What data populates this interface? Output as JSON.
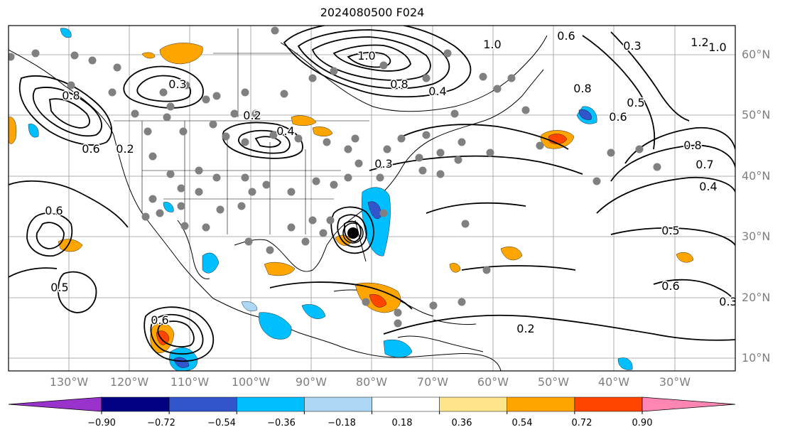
{
  "title": "2024080500 F024",
  "lat_labels": [
    "60°N",
    "50°N",
    "40°N",
    "30°N",
    "20°N",
    "10°N"
  ],
  "lon_labels": [
    "130°W",
    "120°W",
    "110°W",
    "100°W",
    "90°W",
    "80°W",
    "70°W",
    "60°W",
    "50°W",
    "40°W",
    "30°W"
  ],
  "colorbar": {
    "ticks": [
      "−0.90",
      "−0.72",
      "−0.54",
      "−0.36",
      "−0.18",
      "0.18",
      "0.36",
      "0.54",
      "0.72",
      "0.90"
    ],
    "colors": [
      "#9933cc",
      "#000080",
      "#3355cc",
      "#00bfff",
      "#add8f5",
      "#ffffff",
      "#ffe58a",
      "#ffa500",
      "#ff4500",
      "#b22222",
      "#ff85b3"
    ]
  },
  "contour_labels": [
    {
      "text": "1.0"
    },
    {
      "text": "0.6"
    },
    {
      "text": "1.0"
    },
    {
      "text": "0.8"
    },
    {
      "text": "0.4"
    },
    {
      "text": "0.3"
    },
    {
      "text": "0.2"
    },
    {
      "text": "0.4"
    },
    {
      "text": "0.3"
    },
    {
      "text": "0.6"
    },
    {
      "text": "0.8"
    },
    {
      "text": "0.7"
    },
    {
      "text": "0.4"
    },
    {
      "text": "0.5"
    },
    {
      "text": "0.6"
    },
    {
      "text": "0.6"
    },
    {
      "text": "0.3"
    },
    {
      "text": "0.2"
    },
    {
      "text": "0.6"
    },
    {
      "text": "0.2"
    },
    {
      "text": "0.8"
    },
    {
      "text": "1.2"
    },
    {
      "text": "1.0"
    },
    {
      "text": "0.6"
    },
    {
      "text": "0.5"
    },
    {
      "text": "0.8"
    },
    {
      "text": "0.3"
    },
    {
      "text": "0.5"
    }
  ]
}
